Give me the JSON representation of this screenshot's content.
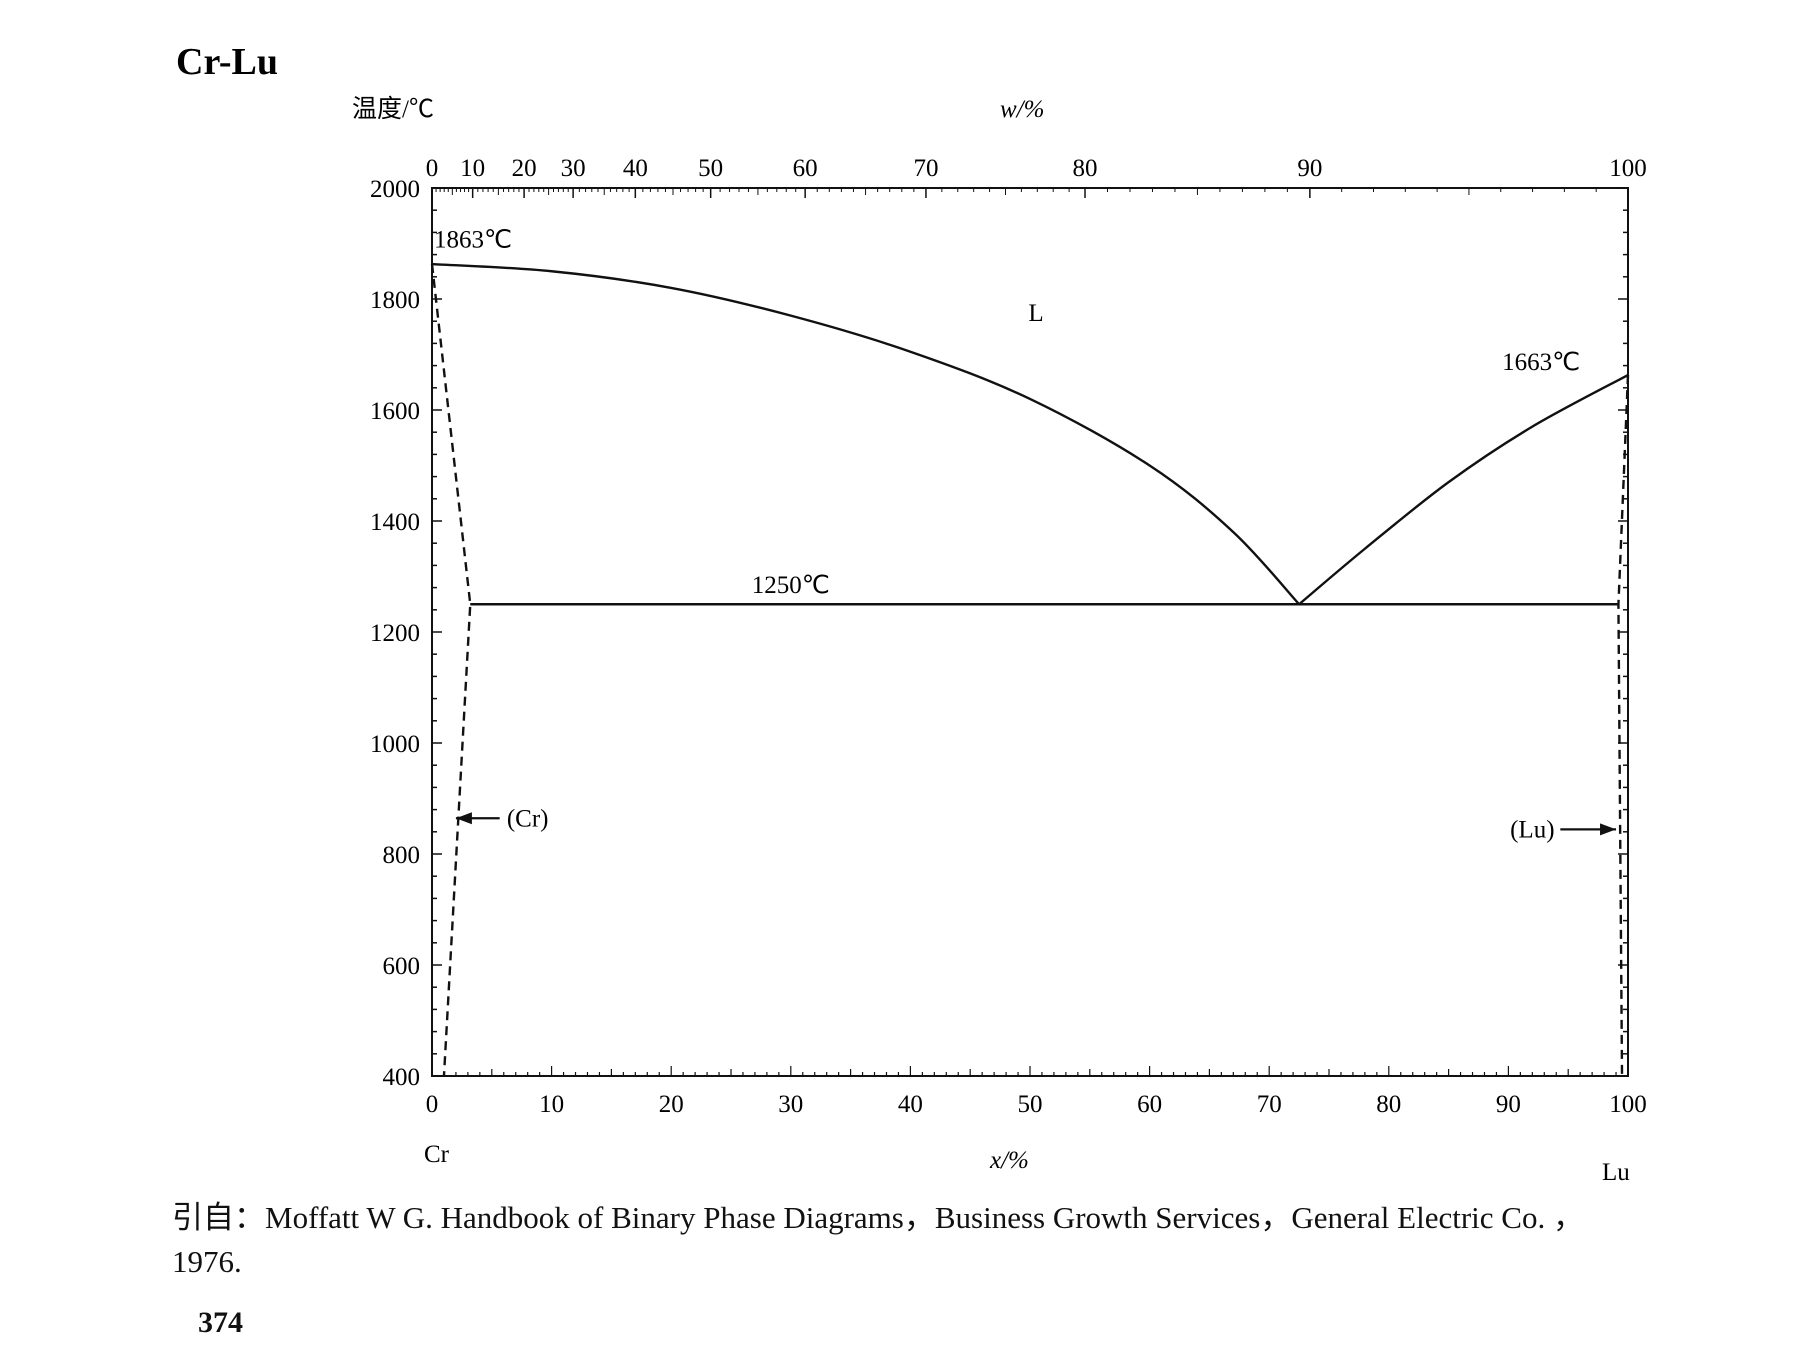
{
  "chart_data": {
    "type": "line",
    "title": "Cr-Lu",
    "ylabel": "温度/℃",
    "xlabel": "x/%",
    "x2label": "w/%",
    "ylim": [
      400,
      2000
    ],
    "xlim": [
      0,
      100
    ],
    "y_ticks": [
      "2000",
      "1800",
      "1600",
      "1400",
      "1200",
      "1000",
      "800",
      "600",
      "400"
    ],
    "x_ticks": [
      "0",
      "10",
      "20",
      "30",
      "40",
      "50",
      "60",
      "70",
      "80",
      "90",
      "100"
    ],
    "x2_ticks": [
      "0",
      "10",
      "20",
      "30",
      "40",
      "50",
      "60",
      "70",
      "80",
      "90",
      "100"
    ],
    "x2_tick_positions_at_percent": [
      0,
      3.4,
      7.7,
      11.8,
      17.0,
      23.3,
      31.2,
      41.3,
      54.6,
      73.4,
      100
    ],
    "left_element": "Cr",
    "right_element": "Lu",
    "series": [
      {
        "style": "solid",
        "points": [
          [
            0,
            1863
          ],
          [
            10,
            1850
          ],
          [
            20,
            1820
          ],
          [
            30,
            1770
          ],
          [
            40,
            1705
          ],
          [
            50,
            1620
          ],
          [
            60,
            1500
          ],
          [
            67,
            1380
          ],
          [
            72.5,
            1250
          ]
        ]
      },
      {
        "style": "solid",
        "points": [
          [
            72.5,
            1250
          ],
          [
            78,
            1350
          ],
          [
            85,
            1470
          ],
          [
            92,
            1570
          ],
          [
            100,
            1663
          ]
        ]
      },
      {
        "style": "solid",
        "points": [
          [
            3.2,
            1250
          ],
          [
            99.2,
            1250
          ]
        ]
      },
      {
        "style": "dashed",
        "points": [
          [
            0,
            1863
          ],
          [
            3.2,
            1250
          ],
          [
            1,
            400
          ]
        ]
      },
      {
        "style": "dashed",
        "points": [
          [
            100,
            1663
          ],
          [
            99.2,
            1250
          ],
          [
            99.5,
            400
          ]
        ]
      }
    ],
    "annotations": [
      {
        "text": "1863℃",
        "x": 4,
        "y": 1893
      },
      {
        "text": "1663℃",
        "x": 96,
        "y": 1672
      },
      {
        "text": "1250℃",
        "x": 30,
        "y": 1270
      },
      {
        "text": "L",
        "x": 50.5,
        "y": 1760
      },
      {
        "text": "(Cr)",
        "x": 8,
        "y": 850,
        "arrow_to": [
          2,
          850
        ]
      },
      {
        "text": "(Lu)",
        "x": 92,
        "y": 830,
        "arrow_to": [
          99,
          830
        ]
      }
    ]
  },
  "caption": {
    "line1": "引自：Moffatt W G. Handbook of Binary Phase Diagrams，Business Growth Services，General Electric Co. ，",
    "line2": "1976."
  },
  "page_number": "374"
}
